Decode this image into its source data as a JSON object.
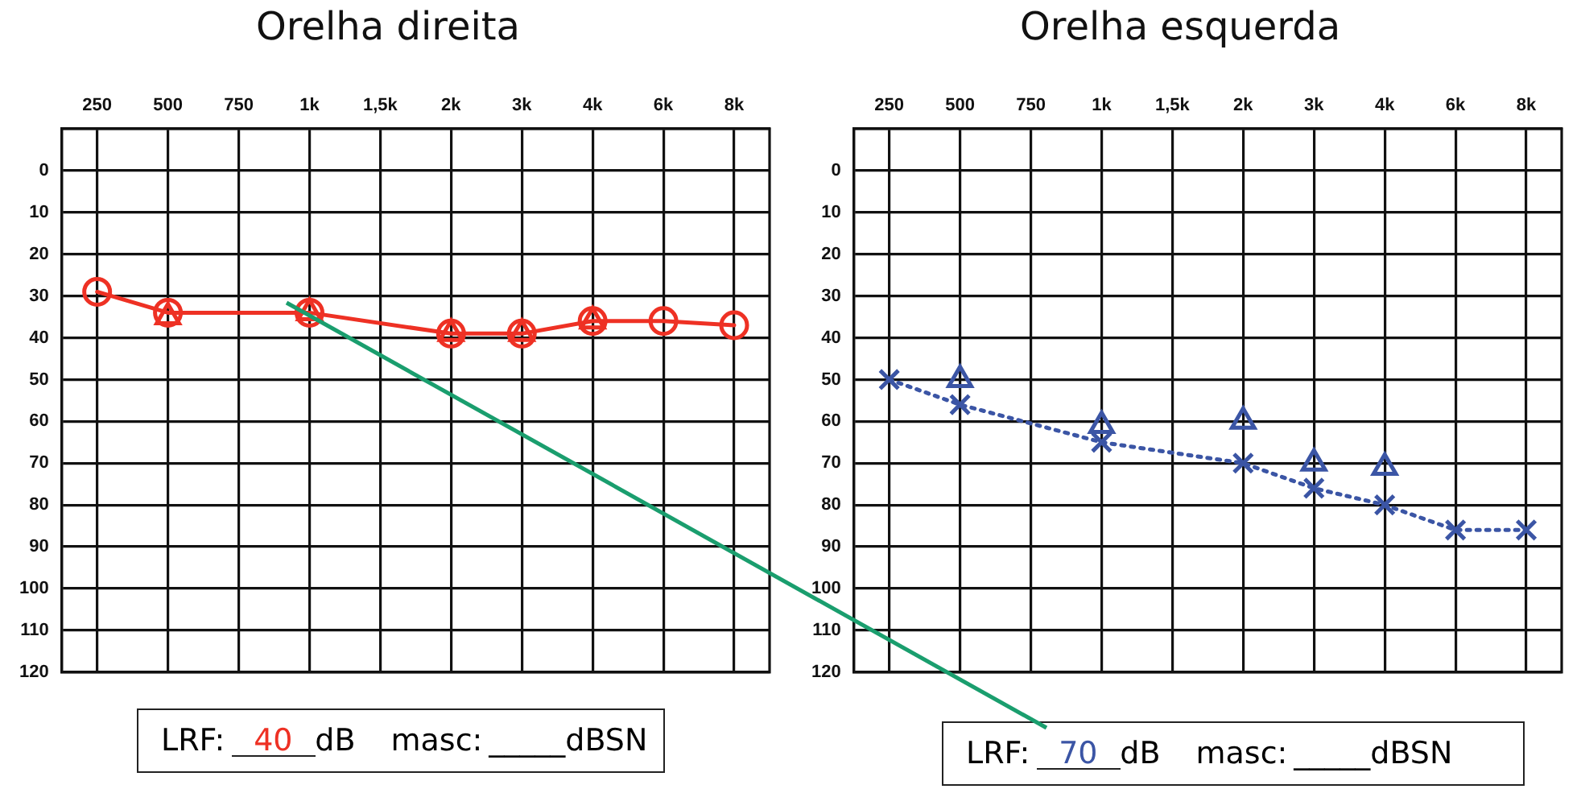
{
  "chart_data": [
    {
      "type": "line",
      "title": "Orelha direita",
      "categories": [
        "250",
        "500",
        "750",
        "1k",
        "1,5k",
        "2k",
        "3k",
        "4k",
        "6k",
        "8k"
      ],
      "ylim": [
        120,
        -10
      ],
      "yticks": [
        0,
        10,
        20,
        30,
        40,
        50,
        60,
        70,
        80,
        90,
        100,
        110,
        120
      ],
      "grid": true,
      "legend": false,
      "series": [
        {
          "type": "line",
          "color": "#ee3124",
          "marker": "circle",
          "line_style": "solid",
          "values": [
            29,
            34,
            null,
            34,
            null,
            39,
            39,
            36,
            36,
            37
          ]
        },
        {
          "type": "scatter",
          "color": "#ee3124",
          "marker": "triangle",
          "values": [
            null,
            35,
            null,
            34,
            null,
            39,
            39,
            36,
            null,
            null
          ]
        }
      ],
      "annotations": [
        "LRF:",
        "40",
        "dB",
        "masc:",
        "_____dBSN"
      ]
    },
    {
      "type": "line",
      "title": "Orelha esquerda",
      "categories": [
        "250",
        "500",
        "750",
        "1k",
        "1,5k",
        "2k",
        "3k",
        "4k",
        "6k",
        "8k"
      ],
      "ylim": [
        120,
        -10
      ],
      "yticks": [
        0,
        10,
        20,
        30,
        40,
        50,
        60,
        70,
        80,
        90,
        100,
        110,
        120
      ],
      "grid": true,
      "legend": false,
      "series": [
        {
          "type": "line",
          "color": "#3b55a5",
          "marker": "cross",
          "line_style": "dotted",
          "values": [
            50,
            56,
            null,
            65,
            null,
            70,
            76,
            80,
            86,
            86
          ]
        },
        {
          "type": "scatter",
          "color": "#3b55a5",
          "marker": "triangle",
          "values": [
            null,
            50,
            null,
            61,
            null,
            60,
            70,
            71,
            null,
            null
          ]
        }
      ],
      "annotations": [
        "LRF:",
        "70",
        "dB",
        "masc:",
        "_____dBSN"
      ]
    }
  ]
}
